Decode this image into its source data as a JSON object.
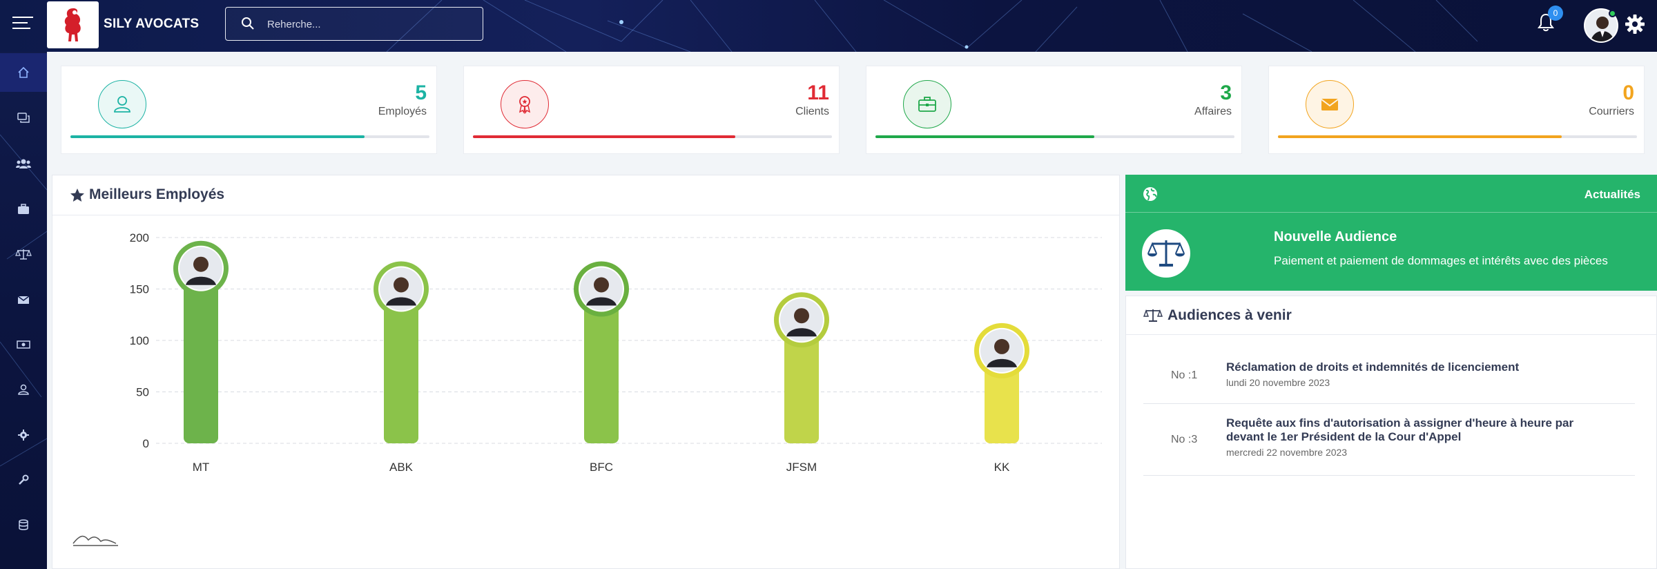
{
  "header": {
    "brand": "SILY AVOCATS",
    "search_placeholder": "Reherche...",
    "notifications_count": "0"
  },
  "sidebar": {
    "items": [
      {
        "icon": "home-icon"
      },
      {
        "icon": "chat-icon"
      },
      {
        "icon": "users-icon"
      },
      {
        "icon": "briefcase-icon"
      },
      {
        "icon": "scale-icon"
      },
      {
        "icon": "envelope-icon"
      },
      {
        "icon": "money-icon"
      },
      {
        "icon": "user-icon"
      },
      {
        "icon": "gear-icon"
      },
      {
        "icon": "wrench-icon"
      },
      {
        "icon": "database-icon"
      }
    ]
  },
  "stats": [
    {
      "value": "5",
      "label": "Employés",
      "color": "#1cb3a4",
      "progress": 0.82,
      "icon": "user-icon"
    },
    {
      "value": "11",
      "label": "Clients",
      "color": "#e02b35",
      "progress": 0.73,
      "icon": "award-icon"
    },
    {
      "value": "3",
      "label": "Affaires",
      "color": "#1fa84a",
      "progress": 0.61,
      "icon": "briefcase-icon"
    },
    {
      "value": "0",
      "label": "Courriers",
      "color": "#f2a41e",
      "progress": 0.79,
      "icon": "envelope-icon"
    }
  ],
  "best_employees": {
    "title": "Meilleurs Employés"
  },
  "chart_data": {
    "type": "bar",
    "categories": [
      "MT",
      "ABK",
      "BFC",
      "JFSM",
      "KK"
    ],
    "values": [
      170,
      150,
      150,
      120,
      90
    ],
    "ylim": [
      0,
      200
    ],
    "yticks": [
      "200",
      "150",
      "100",
      "50",
      "0"
    ],
    "grid": true,
    "colors": [
      "#6db34b",
      "#8bc34a",
      "#8bc34a",
      "#c0d44a",
      "#e8e24c"
    ],
    "ring_colors": [
      "#6db34b",
      "#8bc34a",
      "#6ab040",
      "#b4cc3e",
      "#e4dc3a"
    ]
  },
  "news": {
    "header": "Actualités",
    "title": "Nouvelle Audience",
    "text": "Paiement et paiement de dommages et intérêts avec des pièces",
    "color": "#25b46b"
  },
  "hearings": {
    "title": "Audiences à venir",
    "items": [
      {
        "no": "No :1",
        "title": "Réclamation de droits et indemnités de licenciement",
        "date": "lundi 20 novembre 2023"
      },
      {
        "no": "No :3",
        "title": "Requête aux fins d'autorisation à assigner d'heure à heure par devant le 1er Président de la Cour d'Appel",
        "date": "mercredi 22 novembre 2023"
      }
    ]
  }
}
